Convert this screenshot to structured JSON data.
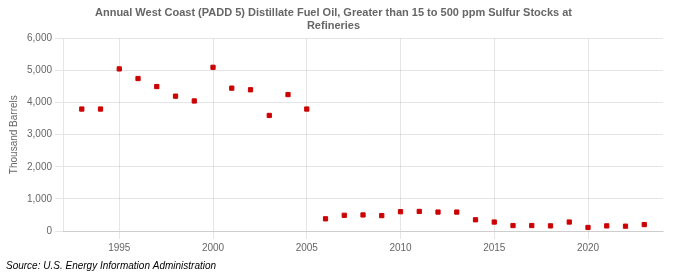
{
  "chart_data": {
    "type": "scatter",
    "title": "Annual West Coast (PADD 5) Distillate Fuel Oil, Greater than 15 to 500 ppm Sulfur Stocks at\nRefineries",
    "ylabel": "Thousand Barrels",
    "annotations": [
      "Source: U.S. Energy Information Administration"
    ],
    "x": [
      1993,
      1994,
      1995,
      1996,
      1997,
      1998,
      1999,
      2000,
      2001,
      2002,
      2003,
      2004,
      2005,
      2006,
      2007,
      2008,
      2009,
      2010,
      2011,
      2012,
      2013,
      2014,
      2015,
      2016,
      2017,
      2018,
      2019,
      2020,
      2021,
      2022,
      2023
    ],
    "values": [
      3800,
      3800,
      5050,
      4750,
      4500,
      4200,
      4050,
      5100,
      4450,
      4400,
      3600,
      4250,
      3800,
      380,
      490,
      500,
      480,
      600,
      610,
      590,
      590,
      350,
      280,
      170,
      170,
      160,
      280,
      110,
      160,
      150,
      200
    ],
    "color": "#cc0000",
    "marker": "square",
    "xlim": [
      1992,
      2024
    ],
    "xticks": [
      1995,
      2000,
      2005,
      2010,
      2015,
      2020
    ],
    "ylim": [
      0,
      6000
    ],
    "yticks": [
      0,
      {
        "value": 1000,
        "label": "1,000"
      },
      {
        "value": 2000,
        "label": "2,000"
      },
      {
        "value": 3000,
        "label": "3,000"
      },
      {
        "value": 4000,
        "label": "4,000"
      },
      {
        "value": 5000,
        "label": "5,000"
      },
      {
        "value": 6000,
        "label": "6,000"
      }
    ],
    "grid": true
  }
}
